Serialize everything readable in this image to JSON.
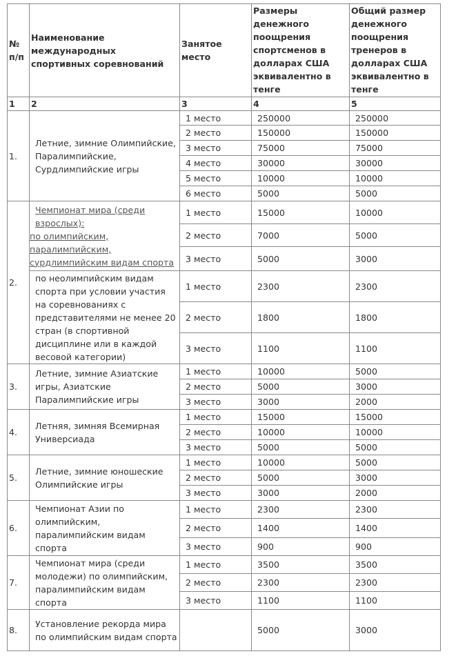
{
  "header": {
    "num": "№ п/п",
    "name": "Наименование международных спортивных соревнований",
    "place": "Занятое место",
    "athletes": "Размеры денежного поощрения спортсменов в долларах США эквивалентно в тенге",
    "coaches": "Общий размер денежного поощрения тренеров в долларах США эквивалентно в тенге"
  },
  "column_numbers": [
    "1",
    "2",
    "3",
    "4",
    "5"
  ],
  "sections": [
    {
      "num": "1.",
      "groups": [
        {
          "name": "Летние, зимние Олимпийские, Паралимпийские, Сурдлимпийские игры",
          "rows": [
            {
              "place": "1 место",
              "athletes": "250000",
              "coaches": "250000"
            },
            {
              "place": "2 место",
              "athletes": "150000",
              "coaches": "150000"
            },
            {
              "place": "3 место",
              "athletes": "75000",
              "coaches": "75000"
            },
            {
              "place": "4 место",
              "athletes": "30000",
              "coaches": "30000"
            },
            {
              "place": "5 место",
              "athletes": "10000",
              "coaches": "10000"
            },
            {
              "place": "6 место",
              "athletes": "5000",
              "coaches": "5000"
            }
          ]
        }
      ]
    },
    {
      "num": "2.",
      "groups": [
        {
          "name_link_lines": [
            "Чемпионат мира (среди взрослых):",
            "по олимпийским, паралимпийским, сурдлимпийским видам спорта"
          ],
          "rows": [
            {
              "place": "1 место",
              "athletes": "15000",
              "coaches": "10000"
            },
            {
              "place": "2 место",
              "athletes": "7000",
              "coaches": "5000"
            },
            {
              "place": "3 место",
              "athletes": "5000",
              "coaches": "3000"
            }
          ]
        },
        {
          "name": "по неолимпийским видам спорта при условии участия на соревнованиях с представителями не менее 20 стран (в спортивной дисциплине или в каждой весовой категории)",
          "rows": [
            {
              "place": "1 место",
              "athletes": "2300",
              "coaches": "2300"
            },
            {
              "place": "2 место",
              "athletes": "1800",
              "coaches": "1800"
            },
            {
              "place": "3 место",
              "athletes": "1100",
              "coaches": "1100"
            }
          ]
        }
      ]
    },
    {
      "num": "3.",
      "groups": [
        {
          "name": "Летние, зимние Азиатские игры, Азиатские Паралимпийские игры",
          "rows": [
            {
              "place": "1 место",
              "athletes": "10000",
              "coaches": "5000"
            },
            {
              "place": "2 место",
              "athletes": "5000",
              "coaches": "3000"
            },
            {
              "place": "3 место",
              "athletes": "3000",
              "coaches": "2000"
            }
          ]
        }
      ]
    },
    {
      "num": "4.",
      "groups": [
        {
          "name": "Летняя, зимняя Всемирная Универсиада",
          "rows": [
            {
              "place": "1 место",
              "athletes": "15000",
              "coaches": "15000"
            },
            {
              "place": "2 место",
              "athletes": "10000",
              "coaches": "10000"
            },
            {
              "place": "3 место",
              "athletes": "5000",
              "coaches": "5000"
            }
          ]
        }
      ]
    },
    {
      "num": "5.",
      "groups": [
        {
          "name": "Летние, зимние юношеские Олимпийские игры",
          "rows": [
            {
              "place": "1 место",
              "athletes": "10000",
              "coaches": "5000"
            },
            {
              "place": "2 место",
              "athletes": "5000",
              "coaches": "3000"
            },
            {
              "place": "3 место",
              "athletes": "3000",
              "coaches": "2000"
            }
          ]
        }
      ]
    },
    {
      "num": "6.",
      "groups": [
        {
          "name": "Чемпионат Азии по олимпийским, паралимпийским видам спорта",
          "rows": [
            {
              "place": "1 место",
              "athletes": "2300",
              "coaches": "2300"
            },
            {
              "place": "2 место",
              "athletes": "1400",
              "coaches": "1400"
            },
            {
              "place": "3 место",
              "athletes": "900",
              "coaches": "900"
            }
          ]
        }
      ]
    },
    {
      "num": "7.",
      "groups": [
        {
          "name": "Чемпионат мира (среди молодежи) по олимпийским, паралимпийским видам спорта",
          "rows": [
            {
              "place": "1 место",
              "athletes": "3500",
              "coaches": "3500"
            },
            {
              "place": "2 место",
              "athletes": "2300",
              "coaches": "2300"
            },
            {
              "place": "3 место",
              "athletes": "1100",
              "coaches": "1100"
            }
          ]
        }
      ]
    },
    {
      "num": "8.",
      "groups": [
        {
          "name": "Установление рекорда мира по олимпийским видам спорта",
          "rows": [
            {
              "place": "",
              "athletes": "5000",
              "coaches": "3000"
            }
          ]
        }
      ]
    }
  ]
}
